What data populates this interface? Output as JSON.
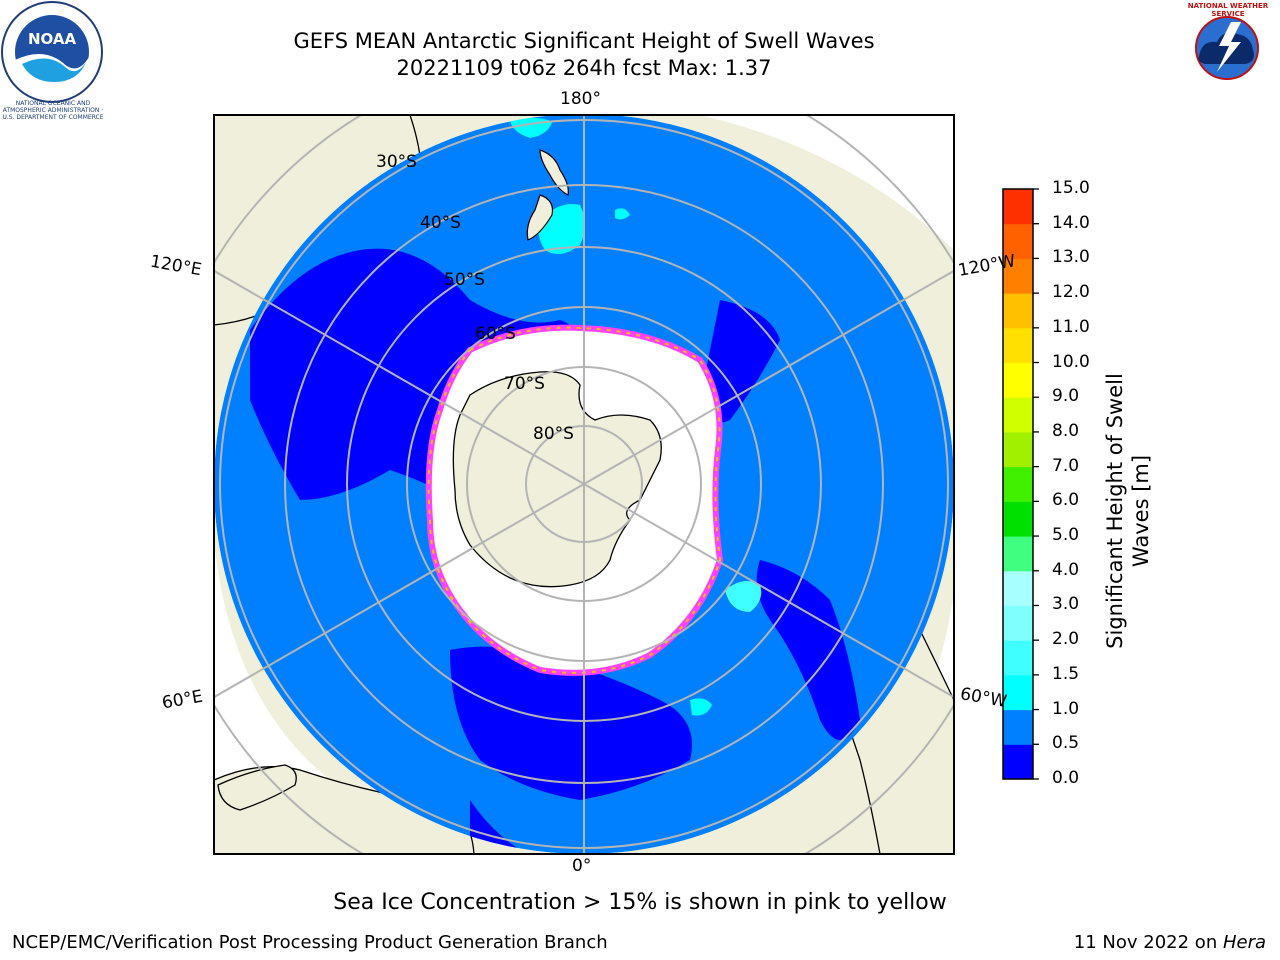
{
  "title": {
    "line1": "GEFS MEAN Antarctic Significant Height of Swell Waves",
    "line2": "20221109 t06z 264h fcst   Max: 1.37"
  },
  "map": {
    "projection": "south-polar-stereographic",
    "longitude_labels": {
      "top": "180°",
      "bottom": "0°",
      "upper_left": "120°E",
      "lower_left": "60°E",
      "upper_right": "120°W",
      "lower_right": "60°W"
    },
    "latitude_labels": [
      "30°S",
      "40°S",
      "50°S",
      "60°S",
      "70°S",
      "80°S"
    ],
    "caption": "Sea Ice Concentration > 15% is shown in pink to yellow"
  },
  "colorbar": {
    "label_line1": "Significant Height of Swell",
    "label_line2": "Waves [m]",
    "ticks": [
      "0.0",
      "0.5",
      "1.0",
      "1.5",
      "2.0",
      "3.0",
      "4.0",
      "5.0",
      "6.0",
      "7.0",
      "8.0",
      "9.0",
      "10.0",
      "11.0",
      "12.0",
      "13.0",
      "14.0",
      "15.0"
    ],
    "colors": [
      "#0000ff",
      "#0080ff",
      "#00ffff",
      "#40ffff",
      "#80ffff",
      "#a8ffff",
      "#40ff80",
      "#00e000",
      "#40f000",
      "#a0f000",
      "#d0ff00",
      "#ffff00",
      "#ffe000",
      "#ffc000",
      "#ff8000",
      "#ff6000",
      "#ff3000",
      "#ff0000"
    ]
  },
  "logos": {
    "left": "NOAA",
    "left_ring": "NATIONAL OCEANIC AND ATMOSPHERIC ADMINISTRATION · U.S. DEPARTMENT OF COMMERCE",
    "right_ring": "NATIONAL WEATHER SERVICE"
  },
  "footer": {
    "left": "NCEP/EMC/Verification Post Processing Product Generation Branch",
    "date": "11 Nov 2022 on ",
    "host": "Hera"
  }
}
